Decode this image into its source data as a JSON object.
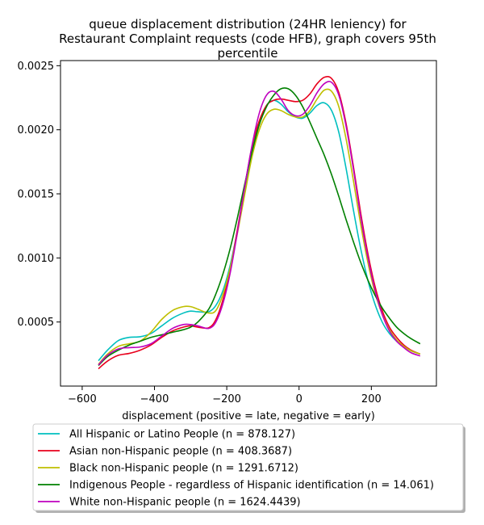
{
  "chart_data": {
    "type": "line",
    "title_lines": [
      "queue displacement distribution (24HR leniency) for",
      "Restaurant Complaint  requests (code HFB), graph covers 95th",
      "percentile"
    ],
    "xlabel": "displacement (positive = late, negative = early)",
    "ylabel": "",
    "xlim": [
      -660,
      380
    ],
    "ylim": [
      0.0,
      0.00254
    ],
    "xticks": [
      -600,
      -400,
      -200,
      0,
      200
    ],
    "xtick_labels": [
      "−600",
      "−400",
      "−200",
      "0",
      "200"
    ],
    "yticks": [
      0.0005,
      0.001,
      0.0015,
      0.002,
      0.0025
    ],
    "ytick_labels": [
      "0.0005",
      "0.0010",
      "0.0015",
      "0.0020",
      "0.0025"
    ],
    "grid": false,
    "legend_position": "below",
    "series": [
      {
        "name": "All Hispanic or Latino People (n = 878.127)",
        "color": "#00bfbf",
        "x": [
          -555,
          -530,
          -500,
          -470,
          -440,
          -410,
          -380,
          -350,
          -320,
          -300,
          -280,
          -250,
          -230,
          -210,
          -190,
          -170,
          -150,
          -130,
          -110,
          -90,
          -70,
          -50,
          -30,
          -10,
          10,
          30,
          50,
          70,
          90,
          110,
          130,
          150,
          170,
          190,
          210,
          230,
          250,
          270,
          290,
          310,
          335
        ],
        "y": [
          0.000198,
          0.00028,
          0.000355,
          0.00038,
          0.000385,
          0.00041,
          0.00047,
          0.00053,
          0.00057,
          0.000585,
          0.00058,
          0.00058,
          0.00063,
          0.00075,
          0.00095,
          0.00122,
          0.00152,
          0.00182,
          0.00205,
          0.00219,
          0.00223,
          0.0022,
          0.00214,
          0.0021,
          0.00209,
          0.00213,
          0.00219,
          0.00221,
          0.00215,
          0.00198,
          0.0017,
          0.00138,
          0.00108,
          0.00083,
          0.00064,
          0.0005,
          0.00041,
          0.00035,
          0.00031,
          0.000275,
          0.00025
        ]
      },
      {
        "name": "Asian non-Hispanic people (n = 408.3687)",
        "color": "#e8001c",
        "x": [
          -555,
          -530,
          -500,
          -470,
          -440,
          -410,
          -380,
          -350,
          -320,
          -300,
          -280,
          -250,
          -230,
          -210,
          -190,
          -170,
          -150,
          -130,
          -110,
          -90,
          -70,
          -50,
          -30,
          -10,
          10,
          30,
          50,
          70,
          90,
          110,
          130,
          150,
          170,
          190,
          210,
          230,
          250,
          270,
          290,
          310,
          335
        ],
        "y": [
          0.000135,
          0.000195,
          0.00024,
          0.000255,
          0.00028,
          0.00032,
          0.00038,
          0.00043,
          0.00046,
          0.00047,
          0.00046,
          0.000455,
          0.00052,
          0.00068,
          0.00092,
          0.00123,
          0.00156,
          0.00187,
          0.00207,
          0.00219,
          0.00223,
          0.00224,
          0.00223,
          0.00222,
          0.00223,
          0.00228,
          0.00236,
          0.00241,
          0.0024,
          0.00229,
          0.00205,
          0.00172,
          0.00136,
          0.00104,
          0.00078,
          0.00059,
          0.00046,
          0.00038,
          0.00032,
          0.00028,
          0.00025
        ]
      },
      {
        "name": "Black non-Hispanic people (n = 1291.6712)",
        "color": "#bfbf00",
        "x": [
          -555,
          -530,
          -500,
          -470,
          -440,
          -410,
          -380,
          -350,
          -320,
          -300,
          -280,
          -250,
          -230,
          -210,
          -190,
          -170,
          -150,
          -130,
          -110,
          -90,
          -70,
          -50,
          -30,
          -10,
          10,
          30,
          50,
          70,
          90,
          110,
          130,
          150,
          170,
          190,
          210,
          230,
          250,
          270,
          290,
          310,
          335
        ],
        "y": [
          0.00017,
          0.00025,
          0.00031,
          0.00033,
          0.00035,
          0.00042,
          0.00052,
          0.00059,
          0.00062,
          0.00062,
          0.0006,
          0.00057,
          0.00059,
          0.00072,
          0.00093,
          0.0012,
          0.0015,
          0.00179,
          0.002,
          0.00212,
          0.00216,
          0.00215,
          0.00212,
          0.0021,
          0.0021,
          0.00215,
          0.00224,
          0.00231,
          0.0023,
          0.00218,
          0.00193,
          0.00161,
          0.00127,
          0.00097,
          0.00073,
          0.00056,
          0.00044,
          0.00036,
          0.00031,
          0.000275,
          0.00025
        ]
      },
      {
        "name": "Indigenous People - regardless of Hispanic identification (n = 14.061)",
        "color": "#008000",
        "x": [
          -555,
          -530,
          -500,
          -470,
          -440,
          -410,
          -380,
          -350,
          -320,
          -300,
          -280,
          -250,
          -230,
          -210,
          -190,
          -170,
          -150,
          -130,
          -110,
          -90,
          -70,
          -50,
          -30,
          -10,
          10,
          30,
          50,
          70,
          90,
          110,
          130,
          150,
          170,
          190,
          210,
          230,
          250,
          270,
          290,
          310,
          335
        ],
        "y": [
          0.00016,
          0.00023,
          0.00028,
          0.00032,
          0.00035,
          0.00038,
          0.0004,
          0.00042,
          0.00044,
          0.00046,
          0.0005,
          0.0006,
          0.00072,
          0.00088,
          0.00108,
          0.00132,
          0.00158,
          0.00183,
          0.00204,
          0.00218,
          0.00227,
          0.00232,
          0.00232,
          0.00227,
          0.00218,
          0.00206,
          0.00193,
          0.0018,
          0.00165,
          0.00148,
          0.0013,
          0.00113,
          0.00097,
          0.00083,
          0.00071,
          0.00061,
          0.00053,
          0.00046,
          0.00041,
          0.00037,
          0.00033
        ]
      },
      {
        "name": "White non-Hispanic people (n = 1624.4439)",
        "color": "#bf00bf",
        "x": [
          -555,
          -530,
          -500,
          -470,
          -440,
          -410,
          -380,
          -350,
          -320,
          -300,
          -280,
          -250,
          -230,
          -210,
          -190,
          -170,
          -150,
          -130,
          -110,
          -90,
          -70,
          -50,
          -30,
          -10,
          10,
          30,
          50,
          70,
          90,
          110,
          130,
          150,
          170,
          190,
          210,
          230,
          250,
          270,
          290,
          310,
          335
        ],
        "y": [
          0.000165,
          0.00024,
          0.00029,
          0.0003,
          0.000305,
          0.00033,
          0.00039,
          0.00045,
          0.00048,
          0.00048,
          0.00047,
          0.00045,
          0.0005,
          0.00065,
          0.00089,
          0.00121,
          0.00156,
          0.00188,
          0.00213,
          0.00227,
          0.0023,
          0.00224,
          0.00215,
          0.00211,
          0.00212,
          0.00219,
          0.00229,
          0.00236,
          0.00237,
          0.00227,
          0.00203,
          0.0017,
          0.00133,
          0.00101,
          0.00075,
          0.00056,
          0.00043,
          0.00035,
          0.0003,
          0.00026,
          0.000235
        ]
      }
    ]
  }
}
